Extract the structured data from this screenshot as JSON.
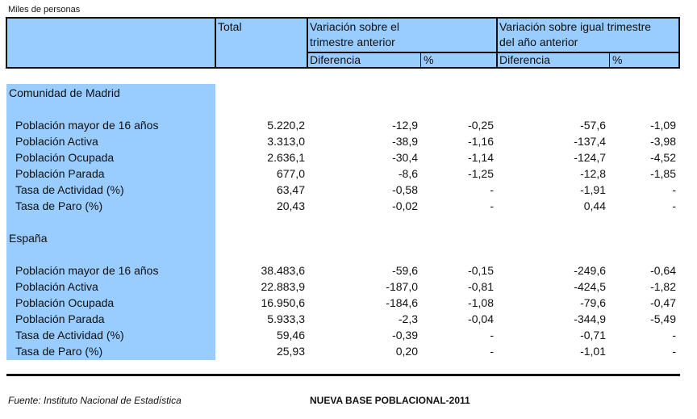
{
  "units": "Miles de personas",
  "header": {
    "total": "Total",
    "var_prev_quarter_line1": "Variación sobre el",
    "var_prev_quarter_line2": "trimestre anterior",
    "var_same_quarter_line1": "Variación sobre igual trimestre",
    "var_same_quarter_line2": "del año anterior",
    "diff": "Diferencia",
    "pct": "%"
  },
  "sections": [
    {
      "title": "Comunidad de Madrid",
      "rows": [
        {
          "label": "Población mayor de 16 años",
          "total": "5.220,2",
          "d1": "-12,9",
          "p1": "-0,25",
          "d2": "-57,6",
          "p2": "-1,09"
        },
        {
          "label": "Población Activa",
          "total": "3.313,0",
          "d1": "-38,9",
          "p1": "-1,16",
          "d2": "-137,4",
          "p2": "-3,98"
        },
        {
          "label": "Población Ocupada",
          "total": "2.636,1",
          "d1": "-30,4",
          "p1": "-1,14",
          "d2": "-124,7",
          "p2": "-4,52"
        },
        {
          "label": "Población Parada",
          "total": "677,0",
          "d1": "-8,6",
          "p1": "-1,25",
          "d2": "-12,8",
          "p2": "-1,85"
        },
        {
          "label": "Tasa de Actividad (%)",
          "total": "63,47",
          "d1": "-0,58",
          "p1": "-",
          "d2": "-1,91",
          "p2": "-"
        },
        {
          "label": "Tasa de Paro (%)",
          "total": "20,43",
          "d1": "-0,02",
          "p1": "-",
          "d2": "0,44",
          "p2": "-"
        }
      ]
    },
    {
      "title": "España",
      "rows": [
        {
          "label": "Población mayor de 16 años",
          "total": "38.483,6",
          "d1": "-59,6",
          "p1": "-0,15",
          "d2": "-249,6",
          "p2": "-0,64"
        },
        {
          "label": "Población Activa",
          "total": "22.883,9",
          "d1": "-187,0",
          "p1": "-0,81",
          "d2": "-424,5",
          "p2": "-1,82"
        },
        {
          "label": "Población Ocupada",
          "total": "16.950,6",
          "d1": "-184,6",
          "p1": "-1,08",
          "d2": "-79,6",
          "p2": "-0,47"
        },
        {
          "label": "Población Parada",
          "total": "5.933,3",
          "d1": "-2,3",
          "p1": "-0,04",
          "d2": "-344,9",
          "p2": "-5,49"
        },
        {
          "label": "Tasa de Actividad (%)",
          "total": "59,46",
          "d1": "-0,39",
          "p1": "-",
          "d2": "-0,71",
          "p2": "-"
        },
        {
          "label": "Tasa de Paro (%)",
          "total": "25,93",
          "d1": "0,20",
          "p1": "-",
          "d2": "-1,01",
          "p2": "-"
        }
      ]
    }
  ],
  "footer": {
    "source": "Fuente: Instituto Nacional de Estadística",
    "title": "NUEVA BASE POBLACIONAL-2011"
  },
  "colors": {
    "header_bg": "#99ccff",
    "label_band": "#99ccff",
    "text": "#111111"
  }
}
